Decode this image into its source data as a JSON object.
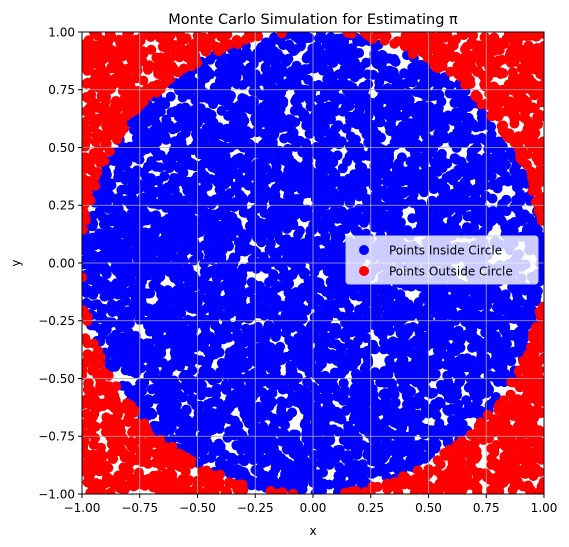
{
  "chart_data": {
    "type": "scatter",
    "title": "Monte Carlo Simulation for Estimating π",
    "xlabel": "x",
    "ylabel": "y",
    "xlim": [
      -1.0,
      1.0
    ],
    "ylim": [
      -1.0,
      1.0
    ],
    "x_ticks": [
      "−1.00",
      "−0.75",
      "−0.50",
      "−0.25",
      "0.00",
      "0.25",
      "0.50",
      "0.75",
      "1.00"
    ],
    "y_ticks": [
      "−1.00",
      "−0.75",
      "−0.50",
      "−0.25",
      "0.00",
      "0.25",
      "0.50",
      "0.75",
      "1.00"
    ],
    "x_tick_values": [
      -1.0,
      -0.75,
      -0.5,
      -0.25,
      0.0,
      0.25,
      0.5,
      0.75,
      1.0
    ],
    "y_tick_values": [
      -1.0,
      -0.75,
      -0.5,
      -0.25,
      0.0,
      0.25,
      0.5,
      0.75,
      1.0
    ],
    "grid": true,
    "legend_position": "center-right",
    "aspect": "equal",
    "sampling": "uniform random points in the square [-1, 1] × [-1, 1], split by x² + y² ≤ 1",
    "series": [
      {
        "name": "Points Inside Circle",
        "color": "#0000ff",
        "rule": "x^2 + y^2 <= 1"
      },
      {
        "name": "Points Outside Circle",
        "color": "#ff0000",
        "rule": "x^2 + y^2 > 1"
      }
    ]
  }
}
